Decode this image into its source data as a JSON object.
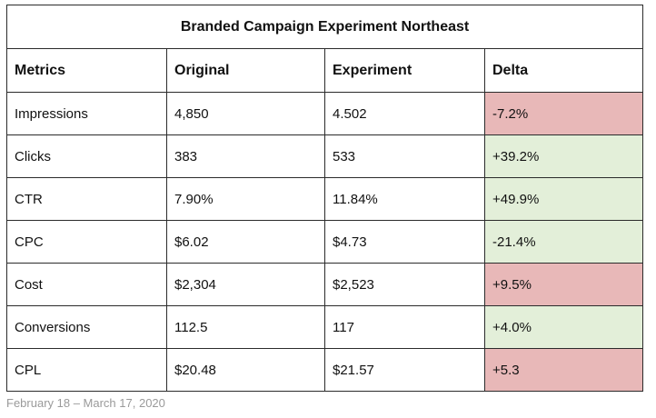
{
  "table": {
    "title": "Branded Campaign Experiment Northeast",
    "headers": [
      "Metrics",
      "Original",
      "Experiment",
      "Delta"
    ],
    "rows": [
      {
        "metric": "Impressions",
        "original": "4,850",
        "experiment": "4.502",
        "delta": "-7.2%",
        "delta_status": "negative"
      },
      {
        "metric": "Clicks",
        "original": "383",
        "experiment": "533",
        "delta": "+39.2%",
        "delta_status": "positive"
      },
      {
        "metric": "CTR",
        "original": "7.90%",
        "experiment": "11.84%",
        "delta": "+49.9%",
        "delta_status": "positive"
      },
      {
        "metric": "CPC",
        "original": "$6.02",
        "experiment": "$4.73",
        "delta": "-21.4%",
        "delta_status": "positive"
      },
      {
        "metric": "Cost",
        "original": "$2,304",
        "experiment": "$2,523",
        "delta": "+9.5%",
        "delta_status": "negative"
      },
      {
        "metric": "Conversions",
        "original": "112.5",
        "experiment": "117",
        "delta": "+4.0%",
        "delta_status": "positive"
      },
      {
        "metric": "CPL",
        "original": "$20.48",
        "experiment": "$21.57",
        "delta": "+5.3",
        "delta_status": "negative"
      }
    ]
  },
  "colors": {
    "negative": "#e8b8b8",
    "positive": "#e3efd9"
  },
  "caption": "February 18 – March 17, 2020"
}
